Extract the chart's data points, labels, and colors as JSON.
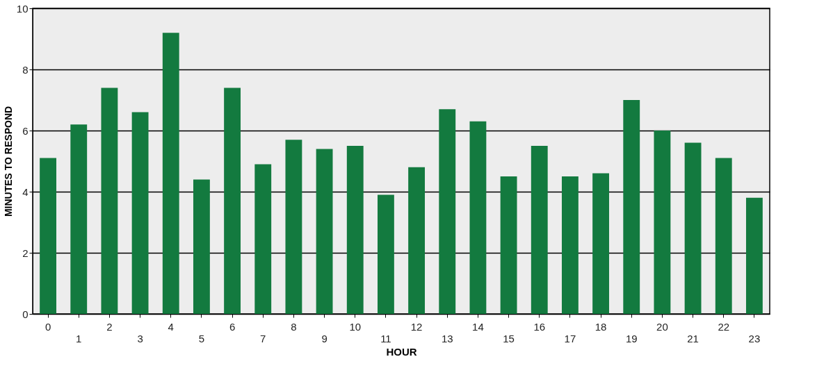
{
  "chart_data": {
    "type": "bar",
    "xlabel": "HOUR",
    "ylabel": "MINUTES TO RESPOND",
    "categories": [
      "0",
      "1",
      "2",
      "3",
      "4",
      "5",
      "6",
      "7",
      "8",
      "9",
      "10",
      "11",
      "12",
      "13",
      "14",
      "15",
      "16",
      "17",
      "18",
      "19",
      "20",
      "21",
      "22",
      "23"
    ],
    "values": [
      5.1,
      6.2,
      7.4,
      6.6,
      9.2,
      4.4,
      7.4,
      4.9,
      5.7,
      5.4,
      5.5,
      3.9,
      4.8,
      6.7,
      6.3,
      4.5,
      5.5,
      4.5,
      4.6,
      7.0,
      6.0,
      5.6,
      5.1,
      3.8
    ],
    "color": "#137a3f",
    "ylim": [
      0,
      10
    ],
    "yticks": [
      0,
      2,
      4,
      6,
      8,
      10
    ],
    "grid": "y"
  }
}
